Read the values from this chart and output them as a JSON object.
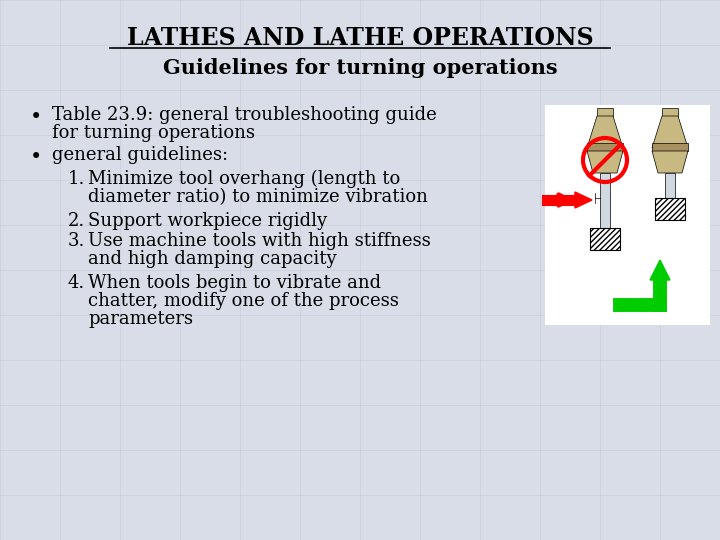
{
  "title_line1": "LATHES AND LATHE OPERATIONS",
  "title_line2": "Guidelines for turning operations",
  "title_fontsize": 17,
  "subtitle_fontsize": 15,
  "bg_color": "#d8dde8",
  "text_color": "#000000",
  "bullet1_line1": "Table 23.9: general troubleshooting guide",
  "bullet1_line2": "for turning operations",
  "bullet2": "general guidelines:",
  "item1_line1": "Minimize tool overhang (length to",
  "item1_line2": "diameter ratio) to minimize vibration",
  "item2": "Support workpiece rigidly",
  "item3_line1": "Use machine tools with high stiffness",
  "item3_line2": "and high damping capacity",
  "item4_line1": "When tools begin to vibrate and",
  "item4_line2": "chatter, modify one of the process",
  "item4_line3": "parameters",
  "body_fontsize": 13,
  "num_fontsize": 13,
  "tool_color": "#c8b882",
  "tool_dark": "#a89060",
  "arrow_red": "#ff0000",
  "arrow_green": "#00cc00",
  "no_symbol_color": "#ff0000",
  "hatching_color": "#333333"
}
